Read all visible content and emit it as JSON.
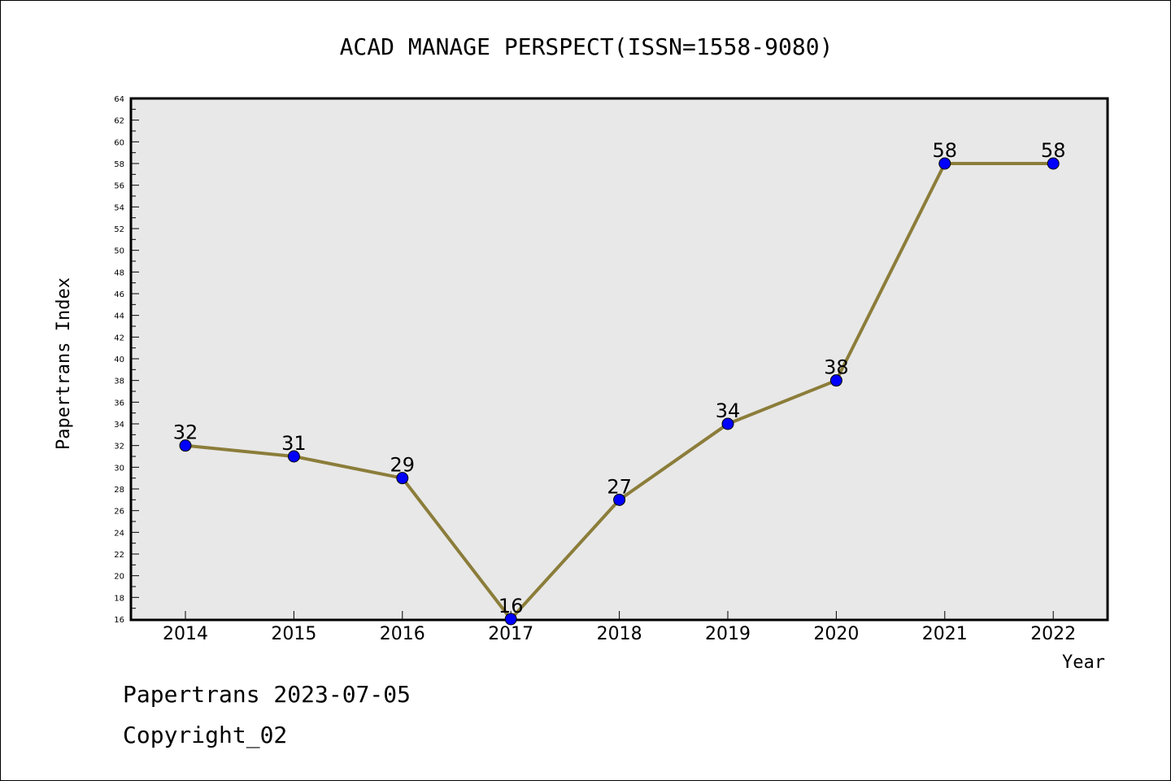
{
  "chart_data": {
    "type": "line",
    "title": "ACAD MANAGE PERSPECT(ISSN=1558-9080)",
    "xlabel": "Year",
    "ylabel": "Papertrans Index",
    "categories": [
      "2014",
      "2015",
      "2016",
      "2017",
      "2018",
      "2019",
      "2020",
      "2021",
      "2022"
    ],
    "values": [
      32,
      31,
      29,
      16,
      27,
      34,
      38,
      58,
      58
    ],
    "ylim": [
      16,
      64
    ],
    "ytick_step": 2,
    "grid": false,
    "legend": "none",
    "line_color": "#8B7D3A",
    "marker_color": "#0000FF",
    "plot_background": "#E8E8E8"
  },
  "footer": {
    "line1": "Papertrans 2023-07-05",
    "line2": "Copyright_02"
  }
}
